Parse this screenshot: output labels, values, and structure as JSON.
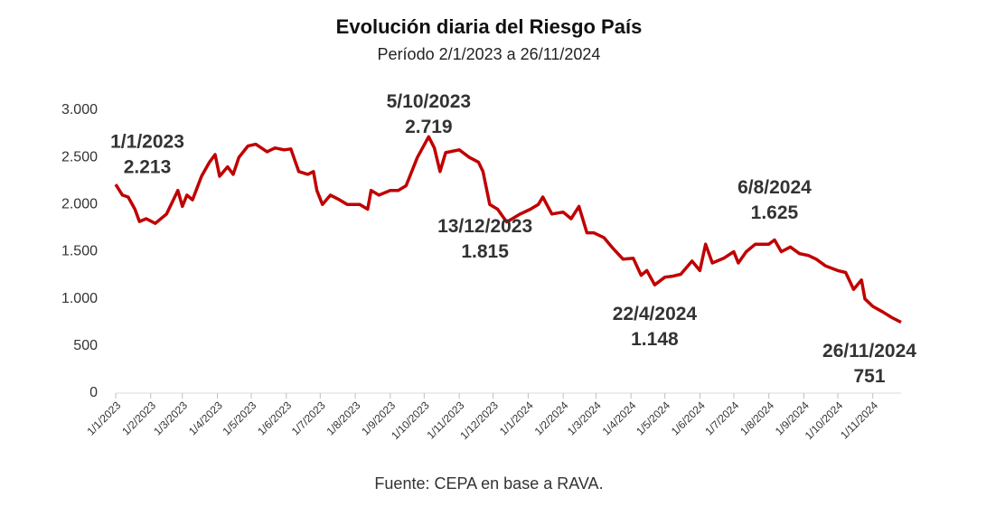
{
  "chart_data": {
    "type": "line",
    "title": "Evolución diaria del Riesgo País",
    "subtitle": "Período 2/1/2023 a 26/11/2024",
    "source": "Fuente: CEPA en base a RAVA.",
    "color": "#c00000",
    "xlim": [
      "1/1/2023",
      "26/11/2024"
    ],
    "ylim": [
      0,
      3000
    ],
    "yticks": [
      0,
      500,
      {
        "value": 1000,
        "label": "1.000"
      },
      {
        "value": 1500,
        "label": "1.500"
      },
      {
        "value": 2000,
        "label": "2.000"
      },
      {
        "value": 2500,
        "label": "2.500"
      },
      {
        "value": 3000,
        "label": "3.000"
      }
    ],
    "xticks": [
      "1/1/2023",
      "1/2/2023",
      "1/3/2023",
      "1/4/2023",
      "1/5/2023",
      "1/6/2023",
      "1/7/2023",
      "1/8/2023",
      "1/9/2023",
      "1/10/2023",
      "1/11/2023",
      "1/12/2023",
      "1/1/2024",
      "1/2/2024",
      "1/3/2024",
      "1/4/2024",
      "1/5/2024",
      "1/6/2024",
      "1/7/2024",
      "1/8/2024",
      "1/9/2024",
      "1/10/2024",
      "1/11/2024"
    ],
    "x": [
      "1/1/2023",
      "7/1/2023",
      "12/1/2023",
      "18/1/2023",
      "22/1/2023",
      "28/1/2023",
      "5/2/2023",
      "15/2/2023",
      "25/2/2023",
      "1/3/2023",
      "5/3/2023",
      "10/3/2023",
      "18/3/2023",
      "25/3/2023",
      "30/3/2023",
      "3/4/2023",
      "10/4/2023",
      "15/4/2023",
      "20/4/2023",
      "28/4/2023",
      "5/5/2023",
      "15/5/2023",
      "22/5/2023",
      "30/5/2023",
      "5/6/2023",
      "12/6/2023",
      "20/6/2023",
      "25/6/2023",
      "28/6/2023",
      "3/7/2023",
      "10/7/2023",
      "18/7/2023",
      "25/7/2023",
      "5/8/2023",
      "12/8/2023",
      "15/8/2023",
      "22/8/2023",
      "1/9/2023",
      "8/9/2023",
      "15/9/2023",
      "25/9/2023",
      "5/10/2023",
      "10/10/2023",
      "15/10/2023",
      "20/10/2023",
      "1/11/2023",
      "10/11/2023",
      "18/11/2023",
      "22/11/2023",
      "28/11/2023",
      "5/12/2023",
      "13/12/2023",
      "18/12/2023",
      "25/12/2023",
      "3/1/2024",
      "10/1/2024",
      "14/1/2024",
      "22/1/2024",
      "1/2/2024",
      "8/2/2024",
      "15/2/2024",
      "22/2/2024",
      "28/2/2024",
      "8/3/2024",
      "15/3/2024",
      "25/3/2024",
      "3/4/2024",
      "10/4/2024",
      "15/4/2024",
      "22/4/2024",
      "1/5/2024",
      "8/5/2024",
      "15/5/2024",
      "25/5/2024",
      "1/6/2024",
      "6/6/2024",
      "12/6/2024",
      "22/6/2024",
      "1/7/2024",
      "5/7/2024",
      "12/7/2024",
      "20/7/2024",
      "1/8/2024",
      "6/8/2024",
      "12/8/2024",
      "20/8/2024",
      "28/8/2024",
      "5/9/2024",
      "12/9/2024",
      "20/9/2024",
      "1/10/2024",
      "8/10/2024",
      "15/10/2024",
      "22/10/2024",
      "25/10/2024",
      "1/11/2024",
      "10/11/2024",
      "18/11/2024",
      "26/11/2024"
    ],
    "values": [
      2213,
      2100,
      2080,
      1950,
      1820,
      1850,
      1800,
      1900,
      2150,
      1980,
      2100,
      2050,
      2300,
      2450,
      2530,
      2300,
      2400,
      2320,
      2500,
      2620,
      2640,
      2560,
      2600,
      2580,
      2590,
      2350,
      2320,
      2350,
      2150,
      2000,
      2100,
      2050,
      2000,
      2000,
      1950,
      2150,
      2100,
      2150,
      2150,
      2200,
      2500,
      2719,
      2600,
      2350,
      2550,
      2580,
      2500,
      2450,
      2350,
      2000,
      1950,
      1815,
      1850,
      1900,
      1950,
      2000,
      2080,
      1900,
      1920,
      1850,
      1980,
      1700,
      1700,
      1650,
      1550,
      1420,
      1430,
      1250,
      1300,
      1148,
      1230,
      1240,
      1260,
      1400,
      1300,
      1580,
      1380,
      1430,
      1500,
      1380,
      1500,
      1580,
      1580,
      1625,
      1500,
      1550,
      1480,
      1460,
      1420,
      1350,
      1300,
      1280,
      1100,
      1200,
      1000,
      920,
      860,
      800,
      751
    ],
    "annotations": [
      {
        "x": "1/1/2023",
        "value": 2213,
        "label": "2.213"
      },
      {
        "x": "5/10/2023",
        "value": 2719,
        "label": "2.719"
      },
      {
        "x": "13/12/2023",
        "value": 1815,
        "label": "1.815"
      },
      {
        "x": "22/4/2024",
        "value": 1148,
        "label": "1.148"
      },
      {
        "x": "6/8/2024",
        "value": 1625,
        "label": "1.625"
      },
      {
        "x": "26/11/2024",
        "value": 751,
        "label": "751"
      }
    ]
  }
}
